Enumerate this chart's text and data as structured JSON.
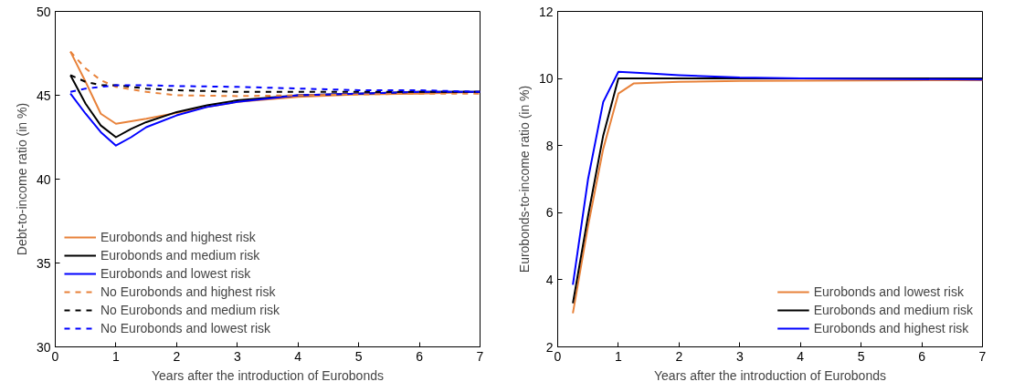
{
  "chart_data": [
    {
      "type": "line",
      "xlabel": "Years after the introduction of Eurobonds",
      "ylabel": "Debt-to-income ratio (in %)",
      "xlim": [
        0,
        7
      ],
      "xticks": [
        0,
        1,
        2,
        3,
        4,
        5,
        6,
        7
      ],
      "ylim": [
        30,
        50
      ],
      "yticks": [
        30,
        35,
        40,
        45,
        50
      ],
      "grid": false,
      "legend": "bottom left",
      "series": [
        {
          "name": "Eurobonds and highest risk",
          "color": "#e8823a",
          "line_style": "solid",
          "x": [
            0.25,
            0.5,
            0.75,
            1,
            1.5,
            2.5,
            3,
            4,
            5,
            6,
            7
          ],
          "values": [
            47.6,
            45.8,
            43.9,
            43.3,
            43.6,
            44.3,
            44.6,
            44.9,
            45.05,
            45.1,
            45.2
          ]
        },
        {
          "name": "Eurobonds and medium risk",
          "color": "#000000",
          "line_style": "solid",
          "x": [
            0.25,
            0.5,
            0.75,
            1,
            1.25,
            1.5,
            2,
            2.5,
            3,
            4,
            5,
            6,
            7
          ],
          "values": [
            46.2,
            44.5,
            43.2,
            42.5,
            43.0,
            43.4,
            44.0,
            44.4,
            44.7,
            45.0,
            45.1,
            45.2,
            45.2
          ]
        },
        {
          "name": "Eurobonds and lowest risk",
          "color": "#0000ff",
          "line_style": "solid",
          "x": [
            0.25,
            0.5,
            0.75,
            1,
            1.25,
            1.5,
            2,
            2.5,
            3,
            4,
            5,
            6,
            7
          ],
          "values": [
            45.1,
            43.9,
            42.8,
            42.0,
            42.5,
            43.1,
            43.8,
            44.3,
            44.6,
            45.0,
            45.1,
            45.2,
            45.2
          ]
        },
        {
          "name": "No Eurobonds and highest risk",
          "color": "#e8823a",
          "line_style": "dashed",
          "x": [
            0.25,
            0.5,
            0.75,
            1,
            1.5,
            2,
            3,
            4,
            5,
            6,
            7
          ],
          "values": [
            47.6,
            46.6,
            45.9,
            45.5,
            45.2,
            45.0,
            44.95,
            45.0,
            45.05,
            45.1,
            45.1
          ]
        },
        {
          "name": "No Eurobonds and medium risk",
          "color": "#000000",
          "line_style": "dashed",
          "x": [
            0.25,
            0.5,
            0.75,
            1,
            1.5,
            2,
            3,
            4,
            5,
            6,
            7
          ],
          "values": [
            46.2,
            45.8,
            45.6,
            45.6,
            45.4,
            45.3,
            45.2,
            45.2,
            45.2,
            45.2,
            45.2
          ]
        },
        {
          "name": "No Eurobonds and lowest risk",
          "color": "#0000ff",
          "line_style": "dashed",
          "x": [
            0.25,
            0.5,
            0.75,
            1,
            1.5,
            2,
            3,
            4,
            5,
            6,
            7
          ],
          "values": [
            45.2,
            45.4,
            45.5,
            45.6,
            45.6,
            45.55,
            45.5,
            45.4,
            45.3,
            45.3,
            45.2
          ]
        }
      ]
    },
    {
      "type": "line",
      "xlabel": "Years after the introduction of Eurobonds",
      "ylabel": "Eurobonds-to-income ratio (in %)",
      "xlim": [
        0,
        7
      ],
      "xticks": [
        0,
        1,
        2,
        3,
        4,
        5,
        6,
        7
      ],
      "ylim": [
        2,
        12
      ],
      "yticks": [
        2,
        4,
        6,
        8,
        10,
        12
      ],
      "grid": false,
      "legend": "bottom right",
      "series": [
        {
          "name": "Eurobonds and lowest risk",
          "color": "#e8823a",
          "line_style": "solid",
          "x": [
            0.25,
            0.5,
            0.75,
            1,
            1.25,
            2,
            3,
            7
          ],
          "values": [
            3.0,
            5.6,
            7.9,
            9.55,
            9.85,
            9.9,
            9.93,
            9.95
          ]
        },
        {
          "name": "Eurobonds and medium risk",
          "color": "#000000",
          "line_style": "solid",
          "x": [
            0.25,
            0.5,
            0.75,
            1,
            2,
            7
          ],
          "values": [
            3.3,
            5.9,
            8.3,
            10.0,
            10.0,
            10.0
          ]
        },
        {
          "name": "Eurobonds and highest risk",
          "color": "#0000ff",
          "line_style": "solid",
          "x": [
            0.25,
            0.5,
            0.75,
            1,
            1.5,
            2,
            3,
            4,
            7
          ],
          "values": [
            3.85,
            7.0,
            9.3,
            10.2,
            10.15,
            10.1,
            10.03,
            10.0,
            9.97
          ]
        }
      ]
    }
  ]
}
